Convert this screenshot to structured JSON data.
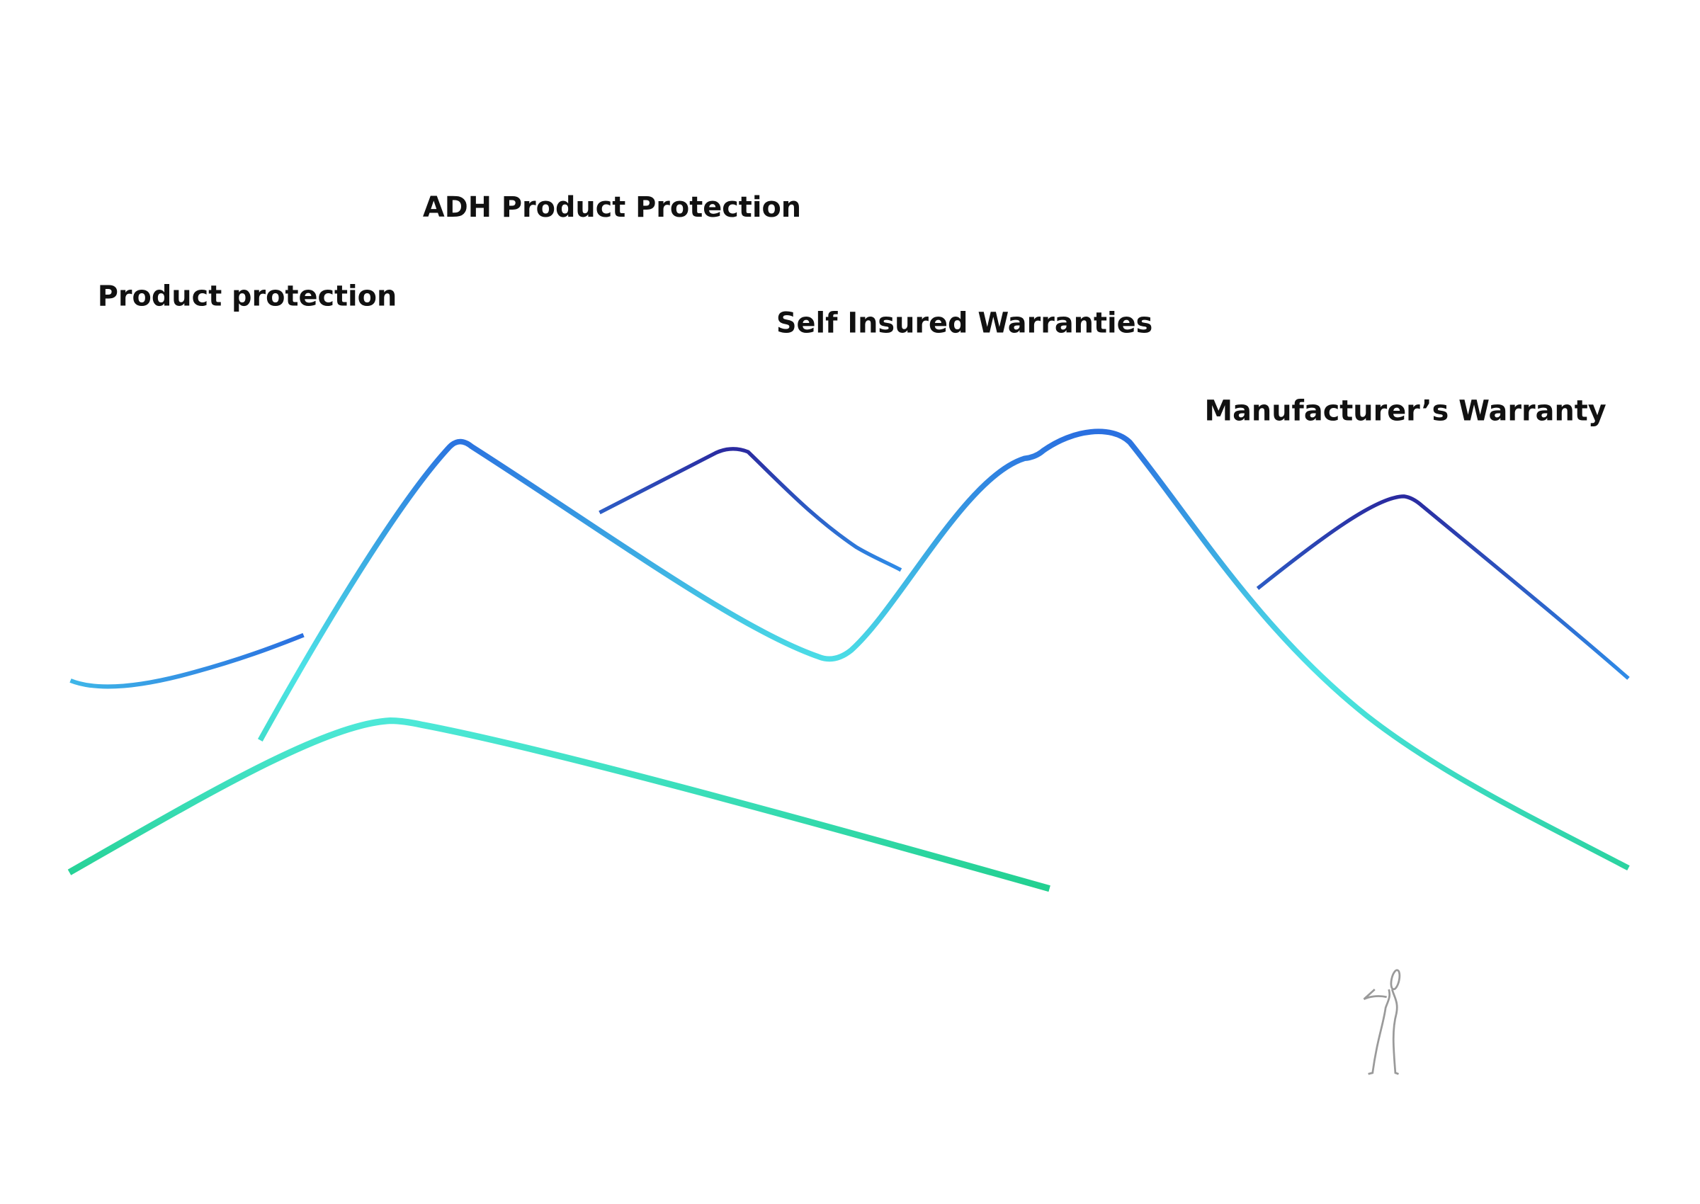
{
  "labels": [
    "Product protection",
    "ADH Product Protection",
    "Self Insured Warranties",
    "Manufacturer’s Warranty"
  ]
}
